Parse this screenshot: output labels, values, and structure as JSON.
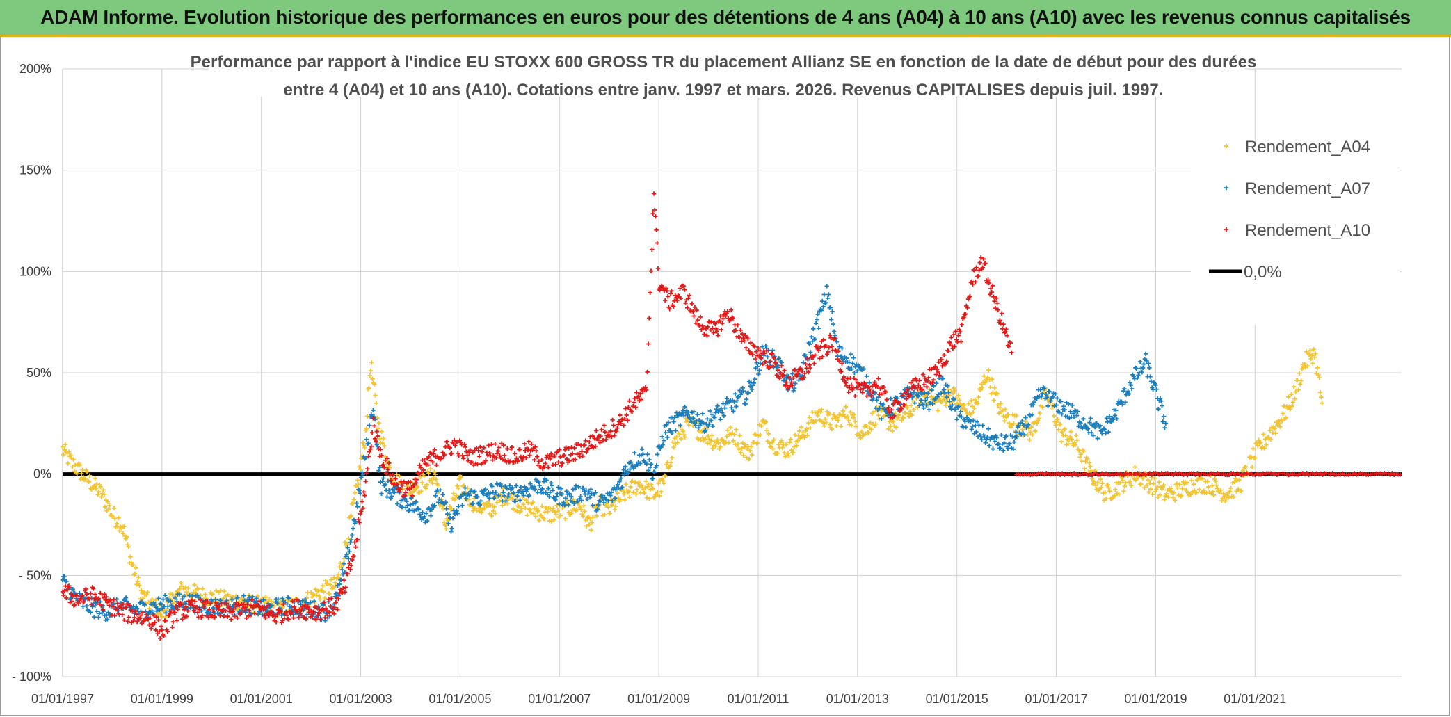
{
  "header": {
    "title": "ADAM Informe. Evolution historique des performances en euros pour des détentions de 4 ans (A04) à 10 ans (A10) avec les revenus connus capitalisés"
  },
  "chart_data": {
    "type": "scatter",
    "title_line1": "Performance par rapport à l'indice EU STOXX 600 GROSS TR  du placement Allianz SE en fonction de la date de début pour des durées",
    "title_line2": "entre 4 (A04) et 10 ans (A10). Cotations entre janv. 1997 et mars. 2026. Revenus CAPITALISES depuis juil. 1997.",
    "xlim": [
      1997.0,
      2023.95
    ],
    "ylim": [
      -100,
      200
    ],
    "y_ticks": [
      {
        "v": 200,
        "label": "200%"
      },
      {
        "v": 150,
        "label": "150%"
      },
      {
        "v": 100,
        "label": "100%"
      },
      {
        "v": 50,
        "label": "50%"
      },
      {
        "v": 0,
        "label": "0%"
      },
      {
        "v": -50,
        "label": "- 50%"
      },
      {
        "v": -100,
        "label": "- 100%"
      }
    ],
    "x_ticks": [
      {
        "v": 1997,
        "label": "01/01/1997"
      },
      {
        "v": 1999,
        "label": "01/01/1999"
      },
      {
        "v": 2001,
        "label": "01/01/2001"
      },
      {
        "v": 2003,
        "label": "01/01/2003"
      },
      {
        "v": 2005,
        "label": "01/01/2005"
      },
      {
        "v": 2007,
        "label": "01/01/2007"
      },
      {
        "v": 2009,
        "label": "01/01/2009"
      },
      {
        "v": 2011,
        "label": "01/01/2011"
      },
      {
        "v": 2013,
        "label": "01/01/2013"
      },
      {
        "v": 2015,
        "label": "01/01/2015"
      },
      {
        "v": 2017,
        "label": "01/01/2017"
      },
      {
        "v": 2019,
        "label": "01/01/2019"
      },
      {
        "v": 2021,
        "label": "01/01/2021"
      }
    ],
    "legend_position": "top-right",
    "grid": true,
    "series": [
      {
        "name": "Rendement_A04",
        "color": "#f4c430",
        "marker": "+",
        "x": [
          1997.0,
          1997.2,
          1997.4,
          1997.6,
          1997.8,
          1998.0,
          1998.2,
          1998.4,
          1998.6,
          1998.8,
          1999.0,
          1999.4,
          1999.8,
          2000.2,
          2000.6,
          2001.0,
          2001.4,
          2001.8,
          2002.2,
          2002.5,
          2002.7,
          2002.9,
          2003.1,
          2003.2,
          2003.35,
          2003.6,
          2003.9,
          2004.2,
          2004.5,
          2004.7,
          2005.0,
          2005.3,
          2005.6,
          2005.9,
          2006.2,
          2006.5,
          2006.8,
          2007.1,
          2007.4,
          2007.6,
          2007.8,
          2008.0,
          2008.3,
          2008.6,
          2008.9,
          2009.1,
          2009.3,
          2009.6,
          2009.9,
          2010.2,
          2010.5,
          2010.8,
          2011.1,
          2011.3,
          2011.6,
          2011.9,
          2012.2,
          2012.5,
          2012.8,
          2013.1,
          2013.4,
          2013.7,
          2014.0,
          2014.3,
          2014.6,
          2014.9,
          2015.2,
          2015.4,
          2015.6,
          2015.9,
          2016.2,
          2016.5,
          2016.8,
          2017.1,
          2017.4,
          2017.7,
          2018.0,
          2018.3,
          2018.6,
          2018.9,
          2019.2,
          2019.5,
          2019.8,
          2020.1,
          2020.4,
          2020.7,
          2021.0,
          2021.3,
          2021.6,
          2021.8,
          2022.0,
          2022.2,
          2022.35
        ],
        "y": [
          12,
          5,
          0,
          -5,
          -10,
          -20,
          -25,
          -45,
          -60,
          -65,
          -68,
          -57,
          -60,
          -62,
          -63,
          -65,
          -66,
          -64,
          -58,
          -55,
          -35,
          -10,
          20,
          55,
          25,
          0,
          -8,
          -5,
          0,
          -25,
          -5,
          -15,
          -18,
          -10,
          -15,
          -18,
          -20,
          -18,
          -15,
          -25,
          -15,
          -18,
          -10,
          -5,
          -10,
          -5,
          15,
          25,
          20,
          15,
          20,
          10,
          25,
          15,
          12,
          20,
          30,
          25,
          30,
          20,
          30,
          25,
          30,
          40,
          35,
          40,
          30,
          35,
          50,
          30,
          25,
          20,
          40,
          20,
          15,
          0,
          -10,
          -5,
          0,
          -5,
          -10,
          -8,
          -5,
          -5,
          -10,
          -5,
          10,
          20,
          30,
          40,
          55,
          60,
          35
        ]
      },
      {
        "name": "Rendement_A07",
        "color": "#1a7fc1",
        "marker": "+",
        "x": [
          1997.0,
          1997.3,
          1997.6,
          1997.9,
          1998.2,
          1998.5,
          1998.8,
          1999.1,
          1999.5,
          1999.9,
          2000.3,
          2000.7,
          2001.1,
          2001.5,
          2001.9,
          2002.3,
          2002.5,
          2002.7,
          2002.9,
          2003.1,
          2003.25,
          2003.4,
          2003.7,
          2004.0,
          2004.3,
          2004.6,
          2004.8,
          2005.1,
          2005.4,
          2005.7,
          2006.0,
          2006.3,
          2006.6,
          2006.9,
          2007.2,
          2007.5,
          2007.8,
          2008.1,
          2008.4,
          2008.7,
          2008.9,
          2009.1,
          2009.3,
          2009.6,
          2009.9,
          2010.2,
          2010.5,
          2010.8,
          2011.1,
          2011.4,
          2011.6,
          2011.8,
          2012.0,
          2012.2,
          2012.4,
          2012.6,
          2012.9,
          2013.2,
          2013.5,
          2013.8,
          2014.1,
          2014.4,
          2014.7,
          2015.0,
          2015.2,
          2015.5,
          2015.8,
          2016.1,
          2016.4,
          2016.7,
          2017.0,
          2017.3,
          2017.6,
          2017.9,
          2018.2,
          2018.5,
          2018.8,
          2019.0,
          2019.2
        ],
        "y": [
          -53,
          -62,
          -66,
          -68,
          -65,
          -67,
          -66,
          -64,
          -63,
          -65,
          -66,
          -64,
          -67,
          -65,
          -66,
          -68,
          -62,
          -45,
          -20,
          10,
          35,
          -5,
          -10,
          -15,
          -20,
          -10,
          -25,
          -10,
          -12,
          -8,
          -10,
          -8,
          -5,
          -10,
          -12,
          -8,
          -15,
          -10,
          5,
          10,
          0,
          20,
          25,
          30,
          25,
          30,
          35,
          40,
          60,
          55,
          45,
          45,
          60,
          75,
          90,
          60,
          55,
          45,
          30,
          35,
          40,
          35,
          45,
          30,
          25,
          20,
          15,
          15,
          25,
          40,
          35,
          30,
          25,
          20,
          30,
          45,
          55,
          40,
          25
        ]
      },
      {
        "name": "Rendement_A10",
        "color": "#e61919",
        "marker": "+",
        "x": [
          1997.0,
          1997.3,
          1997.6,
          1997.9,
          1998.2,
          1998.5,
          1998.8,
          1999.0,
          1999.3,
          1999.7,
          2000.1,
          2000.5,
          2000.9,
          2001.3,
          2001.7,
          2002.1,
          2002.5,
          2002.7,
          2002.9,
          2003.1,
          2003.25,
          2003.4,
          2003.7,
          2004.0,
          2004.3,
          2004.6,
          2004.9,
          2005.2,
          2005.5,
          2005.8,
          2006.1,
          2006.4,
          2006.7,
          2007.0,
          2007.3,
          2007.6,
          2007.9,
          2008.2,
          2008.5,
          2008.75,
          2008.9,
          2009.0,
          2009.2,
          2009.5,
          2009.8,
          2010.1,
          2010.4,
          2010.7,
          2011.0,
          2011.3,
          2011.6,
          2011.9,
          2012.2,
          2012.5,
          2012.8,
          2013.1,
          2013.4,
          2013.7,
          2014.0,
          2014.3,
          2014.6,
          2014.9,
          2015.1,
          2015.3,
          2015.5,
          2015.7,
          2015.9,
          2016.1
        ],
        "y": [
          -58,
          -62,
          -60,
          -64,
          -68,
          -70,
          -72,
          -78,
          -68,
          -66,
          -68,
          -68,
          -66,
          -70,
          -66,
          -68,
          -65,
          -55,
          -35,
          -5,
          25,
          10,
          -5,
          -8,
          5,
          10,
          15,
          8,
          10,
          12,
          8,
          12,
          5,
          8,
          10,
          15,
          20,
          25,
          35,
          40,
          140,
          95,
          85,
          90,
          75,
          70,
          80,
          65,
          60,
          55,
          45,
          50,
          60,
          65,
          45,
          40,
          45,
          30,
          40,
          45,
          50,
          65,
          70,
          95,
          105,
          90,
          75,
          60
        ]
      },
      {
        "name": "0,0%",
        "color": "#000000",
        "marker": "line",
        "x": [
          1997.0,
          2023.95
        ],
        "y": [
          0,
          0
        ]
      }
    ],
    "red_zero_band": [
      2016.2,
      2023.95
    ]
  }
}
